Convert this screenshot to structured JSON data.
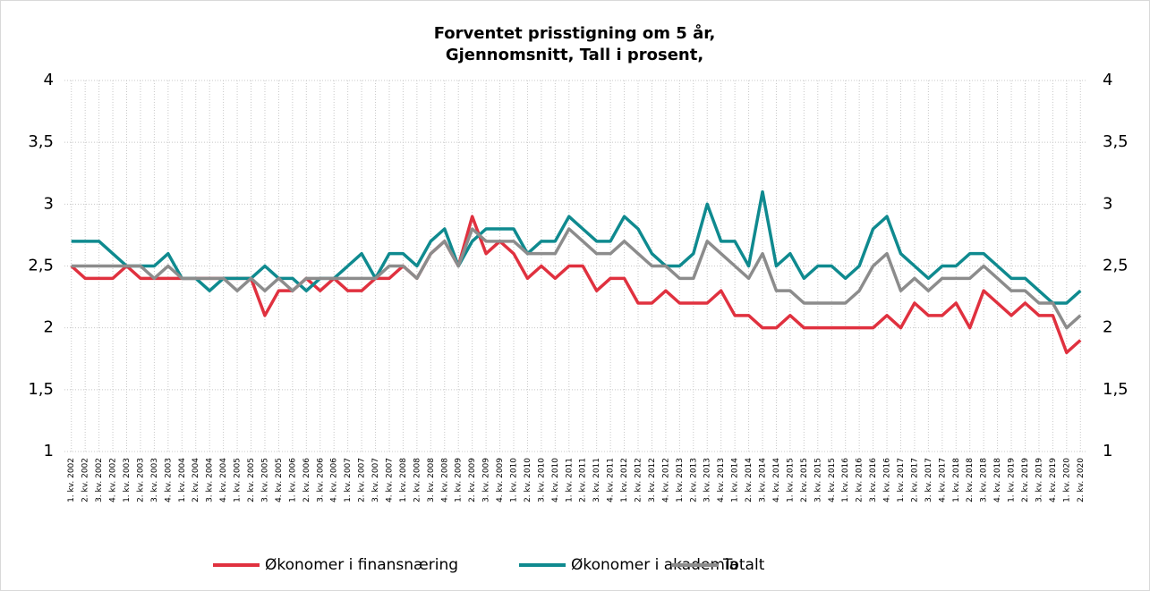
{
  "chart_data": {
    "type": "line",
    "title": "Forventet prisstigning om 5 år,",
    "subtitle": "Gjennomsnitt, Tall i prosent,",
    "categories": [
      "1. kv. 2002",
      "2. kv. 2002",
      "3. kv. 2002",
      "4. kv. 2002",
      "1. kv. 2003",
      "2. kv. 2003",
      "3. kv. 2003",
      "4. kv. 2003",
      "1. kv. 2004",
      "2. kv. 2004",
      "3. kv. 2004",
      "4. kv. 2004",
      "1. kv. 2005",
      "2. kv. 2005",
      "3. kv. 2005",
      "4. kv. 2005",
      "1. kv. 2006",
      "2. kv. 2006",
      "3. kv. 2006",
      "4. kv. 2006",
      "1. kv. 2007",
      "2. kv. 2007",
      "3. kv. 2007",
      "4. kv. 2007",
      "1. kv. 2008",
      "2. kv. 2008",
      "3. kv. 2008",
      "4. kv. 2008",
      "1. kv. 2009",
      "2. kv. 2009",
      "3. kv. 2009",
      "4. kv. 2009",
      "1. kv. 2010",
      "2. kv. 2010",
      "3. kv. 2010",
      "4. kv. 2010",
      "1. kv. 2011",
      "2. kv. 2011",
      "3. kv. 2011",
      "4. kv. 2011",
      "1. kv. 2012",
      "2. kv. 2012",
      "3. kv. 2012",
      "4. kv. 2012",
      "1. kv. 2013",
      "2. kv. 2013",
      "3. kv. 2013",
      "4. kv. 2013",
      "1. kv. 2014",
      "2. kv. 2014",
      "3. kv. 2014",
      "4. kv. 2014",
      "1. kv. 2015",
      "2. kv. 2015",
      "3. kv. 2015",
      "4. kv. 2015",
      "1. kv. 2016",
      "2. kv. 2016",
      "3. kv. 2016",
      "4. kv. 2016",
      "1. kv. 2017",
      "2. kv. 2017",
      "3. kv. 2017",
      "4. kv. 2017",
      "1. kv. 2018",
      "2. kv. 2018",
      "3. kv. 2018",
      "4. kv. 2018",
      "1. kv. 2019",
      "2. kv. 2019",
      "3. kv. 2019",
      "4. kv. 2019",
      "1. kv. 2020",
      "2. kv. 2020"
    ],
    "series": [
      {
        "name": "Økonomer i finansnæring",
        "color": "#e0313f",
        "values": [
          2.5,
          2.4,
          2.4,
          2.4,
          2.5,
          2.4,
          2.4,
          2.4,
          2.4,
          2.4,
          2.4,
          2.4,
          2.4,
          2.4,
          2.1,
          2.3,
          2.3,
          2.4,
          2.3,
          2.4,
          2.3,
          2.3,
          2.4,
          2.4,
          2.5,
          2.4,
          2.6,
          2.7,
          2.5,
          2.9,
          2.6,
          2.7,
          2.6,
          2.4,
          2.5,
          2.4,
          2.5,
          2.5,
          2.3,
          2.4,
          2.4,
          2.2,
          2.2,
          2.3,
          2.2,
          2.2,
          2.2,
          2.3,
          2.1,
          2.1,
          2.0,
          2.0,
          2.1,
          2.0,
          2.0,
          2.0,
          2.0,
          2.0,
          2.0,
          2.1,
          2.0,
          2.2,
          2.1,
          2.1,
          2.2,
          2.0,
          2.3,
          2.2,
          2.1,
          2.2,
          2.1,
          2.1,
          1.8,
          1.9
        ]
      },
      {
        "name": "Økonomer i akademia",
        "color": "#0f8a8f",
        "values": [
          2.7,
          2.7,
          2.7,
          2.6,
          2.5,
          2.5,
          2.5,
          2.6,
          2.4,
          2.4,
          2.3,
          2.4,
          2.4,
          2.4,
          2.5,
          2.4,
          2.4,
          2.3,
          2.4,
          2.4,
          2.5,
          2.6,
          2.4,
          2.6,
          2.6,
          2.5,
          2.7,
          2.8,
          2.5,
          2.7,
          2.8,
          2.8,
          2.8,
          2.6,
          2.7,
          2.7,
          2.9,
          2.8,
          2.7,
          2.7,
          2.9,
          2.8,
          2.6,
          2.5,
          2.5,
          2.6,
          3.0,
          2.7,
          2.7,
          2.5,
          3.1,
          2.5,
          2.6,
          2.4,
          2.5,
          2.5,
          2.4,
          2.5,
          2.8,
          2.9,
          2.6,
          2.5,
          2.4,
          2.5,
          2.5,
          2.6,
          2.6,
          2.5,
          2.4,
          2.4,
          2.3,
          2.2,
          2.2,
          2.3
        ]
      },
      {
        "name": "Totalt",
        "color": "#8c8c8c",
        "values": [
          2.5,
          2.5,
          2.5,
          2.5,
          2.5,
          2.5,
          2.4,
          2.5,
          2.4,
          2.4,
          2.4,
          2.4,
          2.3,
          2.4,
          2.3,
          2.4,
          2.3,
          2.4,
          2.4,
          2.4,
          2.4,
          2.4,
          2.4,
          2.5,
          2.5,
          2.4,
          2.6,
          2.7,
          2.5,
          2.8,
          2.7,
          2.7,
          2.7,
          2.6,
          2.6,
          2.6,
          2.8,
          2.7,
          2.6,
          2.6,
          2.7,
          2.6,
          2.5,
          2.5,
          2.4,
          2.4,
          2.7,
          2.6,
          2.5,
          2.4,
          2.6,
          2.3,
          2.3,
          2.2,
          2.2,
          2.2,
          2.2,
          2.3,
          2.5,
          2.6,
          2.3,
          2.4,
          2.3,
          2.4,
          2.4,
          2.4,
          2.5,
          2.4,
          2.3,
          2.3,
          2.2,
          2.2,
          2.0,
          2.1
        ]
      }
    ],
    "ylim": [
      1,
      4
    ],
    "yticks": [
      1,
      {
        "value": 1.5,
        "label": "1,5"
      },
      2,
      {
        "value": 2.5,
        "label": "2,5"
      },
      3,
      {
        "value": 3.5,
        "label": "3,5"
      },
      4
    ],
    "y2lim": [
      1,
      4
    ],
    "y2ticks": [
      1,
      {
        "value": 1.5,
        "label": "1,5"
      },
      2,
      {
        "value": 2.5,
        "label": "2,5"
      },
      3,
      {
        "value": 3.5,
        "label": "3,5"
      },
      4
    ],
    "grid": true,
    "legend": "bottom"
  }
}
